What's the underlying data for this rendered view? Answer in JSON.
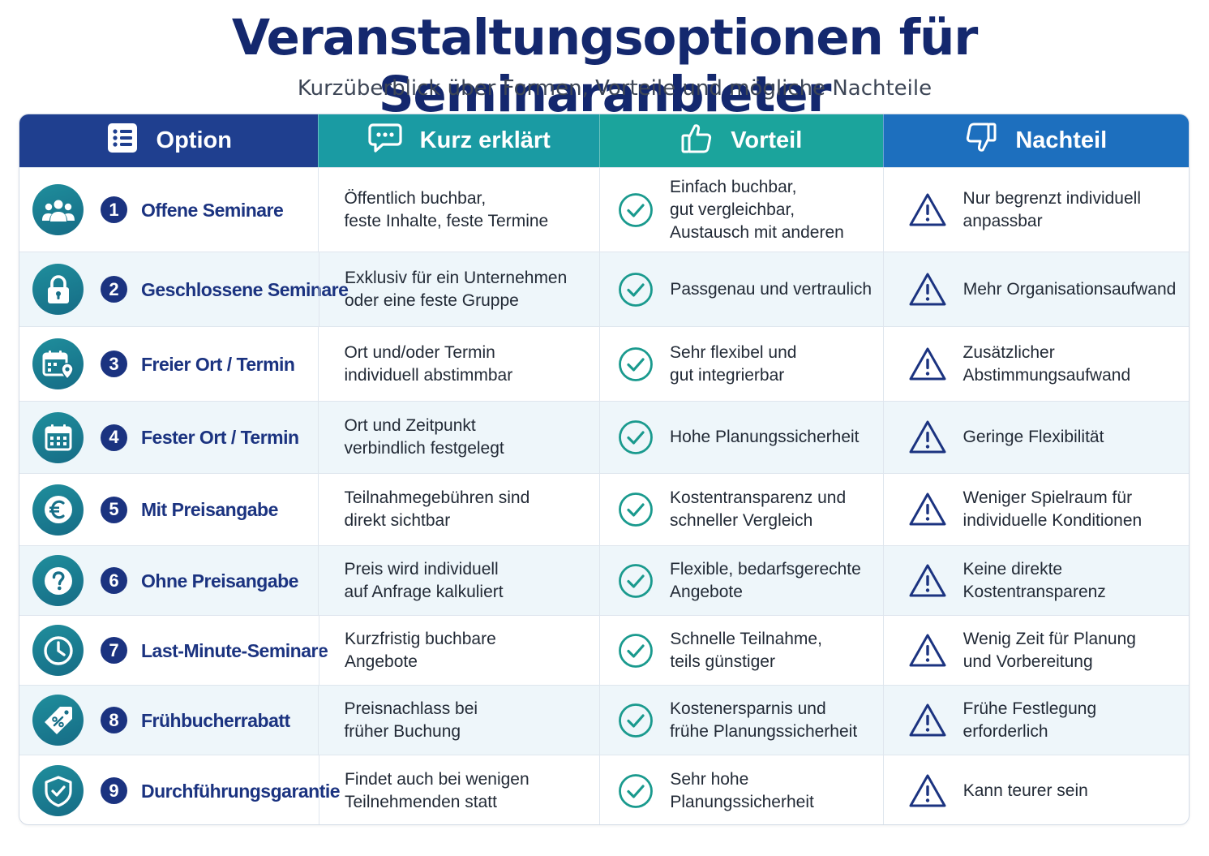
{
  "title": "Veranstaltungsoptionen für Seminaranbieter",
  "subtitle": "Kurzüberblick über Formen, Vorteile und mögliche Nachteile",
  "colors": {
    "title": "#14286e",
    "header_option": "#1f3f8f",
    "header_kurz": "#1a9ba3",
    "header_vorteil": "#1ba49c",
    "header_nachteil": "#1d6fbe",
    "check": "#1a9a8e",
    "warning": "#1b3380"
  },
  "header": {
    "option": "Option",
    "kurz": "Kurz erklärt",
    "vorteil": "Vorteil",
    "nachteil": "Nachteil",
    "icons": [
      "list-icon",
      "chat-bubble-icon",
      "thumbs-up-icon",
      "thumbs-down-icon"
    ]
  },
  "rows": [
    {
      "num": "1",
      "icon": "group-icon",
      "label": "Offene Seminare",
      "kurz": "Öffentlich buchbar,\nfeste Inhalte, feste Termine",
      "vorteil": "Einfach buchbar,\ngut vergleichbar,\nAustausch mit anderen",
      "nachteil": "Nur begrenzt individuell\nanpassbar"
    },
    {
      "num": "2",
      "icon": "lock-icon",
      "label": "Geschlossene Seminare",
      "kurz": "Exklusiv für ein Unternehmen\noder eine feste Gruppe",
      "vorteil": "Passgenau und vertraulich",
      "nachteil": "Mehr Organisationsaufwand"
    },
    {
      "num": "3",
      "icon": "calendar-location-icon",
      "label": "Freier Ort / Termin",
      "kurz": "Ort und/oder Termin\nindividuell abstimmbar",
      "vorteil": "Sehr flexibel und\ngut integrierbar",
      "nachteil": "Zusätzlicher\nAbstimmungsaufwand"
    },
    {
      "num": "4",
      "icon": "calendar-icon",
      "label": "Fester Ort / Termin",
      "kurz": "Ort und Zeitpunkt\nverbindlich festgelegt",
      "vorteil": "Hohe Planungssicherheit",
      "nachteil": "Geringe Flexibilität"
    },
    {
      "num": "5",
      "icon": "euro-icon",
      "label": "Mit Preisangabe",
      "kurz": "Teilnahmegebühren sind\ndirekt sichtbar",
      "vorteil": "Kostentransparenz und\nschneller Vergleich",
      "nachteil": "Weniger Spielraum für\nindividuelle Konditionen"
    },
    {
      "num": "6",
      "icon": "question-icon",
      "label": "Ohne Preisangabe",
      "kurz": "Preis wird individuell\nauf Anfrage kalkuliert",
      "vorteil": "Flexible, bedarfsgerechte\nAngebote",
      "nachteil": "Keine direkte\nKostentransparenz"
    },
    {
      "num": "7",
      "icon": "clock-icon",
      "label": "Last-Minute-Seminare",
      "kurz": "Kurzfristig buchbare\nAngebote",
      "vorteil": "Schnelle Teilnahme,\nteils günstiger",
      "nachteil": "Wenig Zeit für Planung\nund Vorbereitung"
    },
    {
      "num": "8",
      "icon": "discount-tag-icon",
      "label": "Frühbucherrabatt",
      "kurz": "Preisnachlass bei\nfrüher Buchung",
      "vorteil": "Kostenersparnis und\nfrühe Planungssicherheit",
      "nachteil": "Frühe Festlegung\nerforderlich"
    },
    {
      "num": "9",
      "icon": "shield-check-icon",
      "label": "Durchführungsgarantie",
      "kurz": "Findet auch bei wenigen\nTeilnehmenden statt",
      "vorteil": "Sehr hohe\nPlanungssicherheit",
      "nachteil": "Kann teurer sein"
    }
  ]
}
